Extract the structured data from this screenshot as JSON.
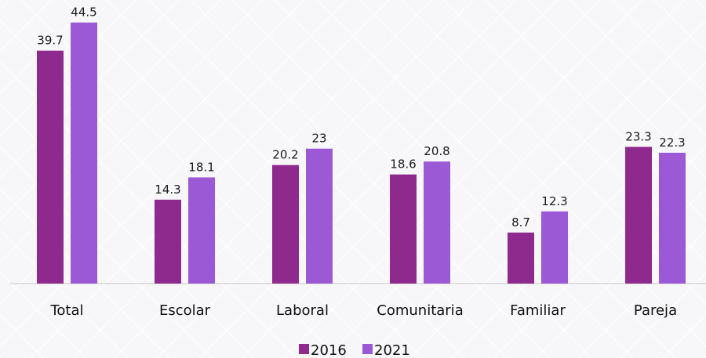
{
  "chart_data": {
    "type": "bar",
    "title": "",
    "xlabel": "",
    "ylabel": "",
    "ylim": [
      0,
      47
    ],
    "grid": false,
    "legend_position": "bottom",
    "categories": [
      "Total",
      "Escolar",
      "Laboral",
      "Comunitaria",
      "Familiar",
      "Pareja"
    ],
    "series": [
      {
        "name": "2016",
        "color": "#8e2a8e",
        "values": [
          39.7,
          14.3,
          20.2,
          18.6,
          8.7,
          23.3
        ],
        "labels": [
          "39.7",
          "14.3",
          "20.2",
          "18.6",
          "8.7",
          "23.3"
        ]
      },
      {
        "name": "2021",
        "color": "#9b59d6",
        "values": [
          44.5,
          18.1,
          23,
          20.8,
          12.3,
          22.3
        ],
        "labels": [
          "44.5",
          "18.1",
          "23",
          "20.8",
          "12.3",
          "22.3"
        ]
      }
    ]
  }
}
